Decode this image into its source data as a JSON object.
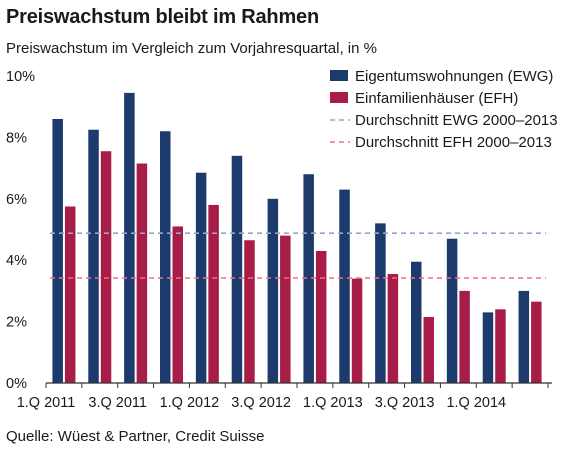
{
  "title": "Preiswachstum bleibt im Rahmen",
  "subtitle": "Preiswachstum im Vergleich zum Vorjahresquartal, in %",
  "source": "Quelle: Wüest & Partner, Credit Suisse",
  "colors": {
    "ewg": "#1c3a6b",
    "efh": "#a81c48",
    "ewg_avg": "#8fa8cc",
    "efh_avg": "#e9727f",
    "axis": "#333333"
  },
  "chart_data": {
    "type": "bar",
    "title": "Preiswachstum bleibt im Rahmen",
    "subtitle": "Preiswachstum im Vergleich zum Vorjahresquartal, in %",
    "xlabel": "",
    "ylabel": "",
    "ylim": [
      0,
      10
    ],
    "yticks": [
      "0%",
      "2%",
      "4%",
      "6%",
      "8%",
      "10%"
    ],
    "grid": false,
    "legend_position": "top-right",
    "categories": [
      "1.Q 2011",
      "2.Q 2011",
      "3.Q 2011",
      "4.Q 2011",
      "1.Q 2012",
      "2.Q 2012",
      "3.Q 2012",
      "4.Q 2012",
      "1.Q 2013",
      "2.Q 2013",
      "3.Q 2013",
      "4.Q 2013",
      "1.Q 2014",
      "2.Q 2014"
    ],
    "tick_labels": [
      "1.Q 2011",
      "3.Q 2011",
      "1.Q 2012",
      "3.Q 2012",
      "1.Q 2013",
      "3.Q 2013",
      "1.Q 2014"
    ],
    "series": [
      {
        "name": "Eigentumswohnungen (EWG)",
        "values": [
          8.6,
          8.25,
          9.45,
          8.2,
          6.85,
          7.4,
          6.0,
          6.8,
          6.3,
          5.2,
          3.95,
          4.7,
          2.3,
          3.0
        ]
      },
      {
        "name": "Einfamilienhäuser (EFH)",
        "values": [
          5.75,
          7.55,
          7.15,
          5.1,
          5.8,
          4.65,
          4.8,
          4.3,
          3.4,
          3.55,
          2.15,
          3.0,
          2.4,
          2.65
        ]
      }
    ],
    "reference_lines": [
      {
        "name": "Durchschnitt EWG 2000–2013",
        "value": 4.88
      },
      {
        "name": "Durchschnitt EFH 2000–2013",
        "value": 3.42
      }
    ]
  }
}
